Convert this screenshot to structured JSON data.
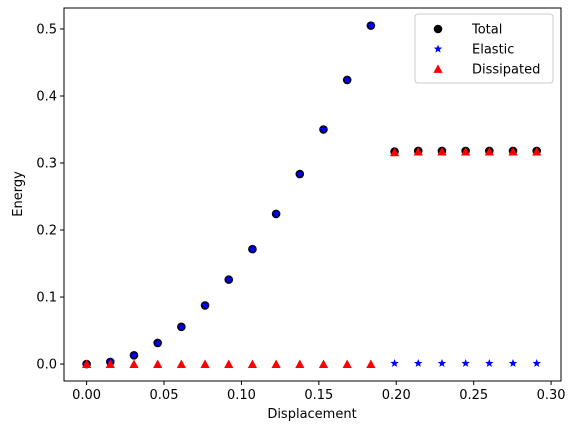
{
  "chart_data": {
    "type": "scatter",
    "title": "",
    "xlabel": "Displacement",
    "ylabel": "Energy",
    "xlim": [
      -0.0146,
      0.3064
    ],
    "ylim": [
      -0.0253,
      0.5313
    ],
    "xticks": [
      0.0,
      0.05,
      0.1,
      0.15,
      0.2,
      0.25,
      0.3
    ],
    "xtick_labels": [
      "0.00",
      "0.05",
      "0.10",
      "0.15",
      "0.20",
      "0.25",
      "0.30"
    ],
    "yticks": [
      0.0,
      0.1,
      0.2,
      0.3,
      0.4,
      0.5
    ],
    "ytick_labels": [
      "0.0",
      "0.1",
      "0.2",
      "0.3",
      "0.4",
      "0.5"
    ],
    "grid": false,
    "legend_position": "top-right",
    "x": [
      0.0,
      0.0153,
      0.0306,
      0.0459,
      0.0612,
      0.0765,
      0.0918,
      0.1071,
      0.1224,
      0.1377,
      0.153,
      0.1683,
      0.1836,
      0.1989,
      0.2142,
      0.2295,
      0.2448,
      0.2601,
      0.2754,
      0.2907
    ],
    "series": [
      {
        "name": "Total",
        "marker": "circle",
        "color": "#000000",
        "values": [
          0.0,
          0.0032,
          0.013,
          0.0315,
          0.0555,
          0.0875,
          0.126,
          0.1715,
          0.224,
          0.2835,
          0.35,
          0.424,
          0.505,
          0.317,
          0.318,
          0.318,
          0.318,
          0.318,
          0.318,
          0.318
        ]
      },
      {
        "name": "Elastic",
        "marker": "star",
        "color": "#0000ff",
        "values": [
          0.0,
          0.0032,
          0.013,
          0.0315,
          0.0555,
          0.0875,
          0.126,
          0.1715,
          0.224,
          0.2835,
          0.35,
          0.424,
          0.505,
          0.001,
          0.001,
          0.001,
          0.001,
          0.001,
          0.001,
          0.001
        ]
      },
      {
        "name": "Dissipated",
        "marker": "triangle",
        "color": "#ff0000",
        "values": [
          0.0,
          0.0,
          0.0,
          0.0,
          0.0,
          0.0,
          0.0,
          0.0,
          0.0,
          0.0,
          0.0,
          0.0,
          0.0,
          0.316,
          0.317,
          0.317,
          0.317,
          0.317,
          0.317,
          0.317
        ]
      }
    ]
  }
}
